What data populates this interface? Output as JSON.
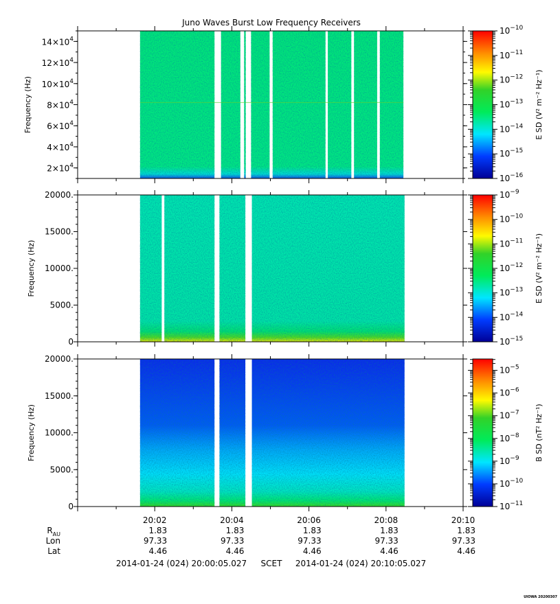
{
  "chart_data": [
    {
      "type": "heatmap",
      "title": "Juno Waves Burst Low Frequency Receivers",
      "ylabel": "Frequency (Hz)",
      "ylim": [
        10000,
        150000
      ],
      "yticks": [
        {
          "v": 20000,
          "m": "2"
        },
        {
          "v": 40000,
          "m": "4"
        },
        {
          "v": 60000,
          "m": "6"
        },
        {
          "v": 80000,
          "m": "8"
        },
        {
          "v": 100000,
          "m": "10"
        },
        {
          "v": 120000,
          "m": "12"
        },
        {
          "v": 140000,
          "m": "14"
        }
      ],
      "ytick_suffix": "×10",
      "ytick_exp": "4",
      "colorbar": {
        "label": "E SD (V² m⁻² Hz⁻¹)",
        "exponents": [
          -10,
          -11,
          -12,
          -13,
          -14,
          -15,
          -16
        ],
        "range": [
          -16,
          -10
        ]
      },
      "data_span": [
        1.62,
        8.45
      ],
      "gaps": [
        [
          3.55,
          3.72
        ],
        [
          4.22,
          4.32
        ],
        [
          4.36,
          4.5
        ],
        [
          4.98,
          5.06
        ],
        [
          6.43,
          6.49
        ],
        [
          7.1,
          7.17
        ],
        [
          7.77,
          7.84
        ]
      ],
      "level": "moderate (~10⁻¹³)",
      "base": "green"
    },
    {
      "type": "heatmap",
      "ylabel": "Frequency (Hz)",
      "ylim": [
        0,
        20000
      ],
      "yticks": [
        "0",
        "5000.",
        "10000.",
        "15000.",
        "20000."
      ],
      "colorbar": {
        "label": "E SD (V² m⁻² Hz⁻¹)",
        "exponents": [
          -9,
          -10,
          -11,
          -12,
          -13,
          -14,
          -15
        ],
        "range": [
          -15,
          -9
        ]
      },
      "data_span": [
        1.62,
        8.48
      ],
      "gaps": [
        [
          2.18,
          2.25
        ],
        [
          3.55,
          3.68
        ],
        [
          4.35,
          4.52
        ]
      ],
      "level": "low (~10⁻¹³), enhanced near 0 Hz",
      "base": "cyan"
    },
    {
      "type": "heatmap",
      "ylabel": "Frequency (Hz)",
      "ylim": [
        0,
        20000
      ],
      "yticks": [
        "0",
        "5000.",
        "10000.",
        "15000.",
        "20000."
      ],
      "colorbar": {
        "label": "B SD (nT² Hz⁻¹)",
        "exponents": [
          -5,
          -6,
          -7,
          -8,
          -9,
          -10,
          -11
        ],
        "range": [
          -11,
          -4.5
        ]
      },
      "data_span": [
        1.62,
        8.48
      ],
      "gaps": [
        [
          3.55,
          3.68
        ],
        [
          4.35,
          4.52
        ]
      ],
      "level": "low (~10⁻¹⁰) at high frequency, rising toward 0 Hz",
      "base": "blue"
    }
  ],
  "x_axis": {
    "ticks": [
      "20:02",
      "20:04",
      "20:06",
      "20:08",
      "20:10"
    ],
    "range": [
      0,
      10
    ]
  },
  "ephemeris": {
    "rows": [
      {
        "label": "R",
        "sub": "AU",
        "values": [
          "1.83",
          "1.83",
          "1.83",
          "1.83",
          "1.83"
        ]
      },
      {
        "label": "Lon",
        "values": [
          "97.33",
          "97.33",
          "97.33",
          "97.33",
          "97.33"
        ]
      },
      {
        "label": "Lat",
        "values": [
          "4.46",
          "4.46",
          "4.46",
          "4.46",
          "4.46"
        ]
      }
    ]
  },
  "footer": {
    "start": "2014-01-24 (024) 20:00:05.027",
    "scet": "SCET",
    "end": "2014-01-24 (024) 20:10:05.027"
  },
  "stamp": "UIOWA 20200307"
}
